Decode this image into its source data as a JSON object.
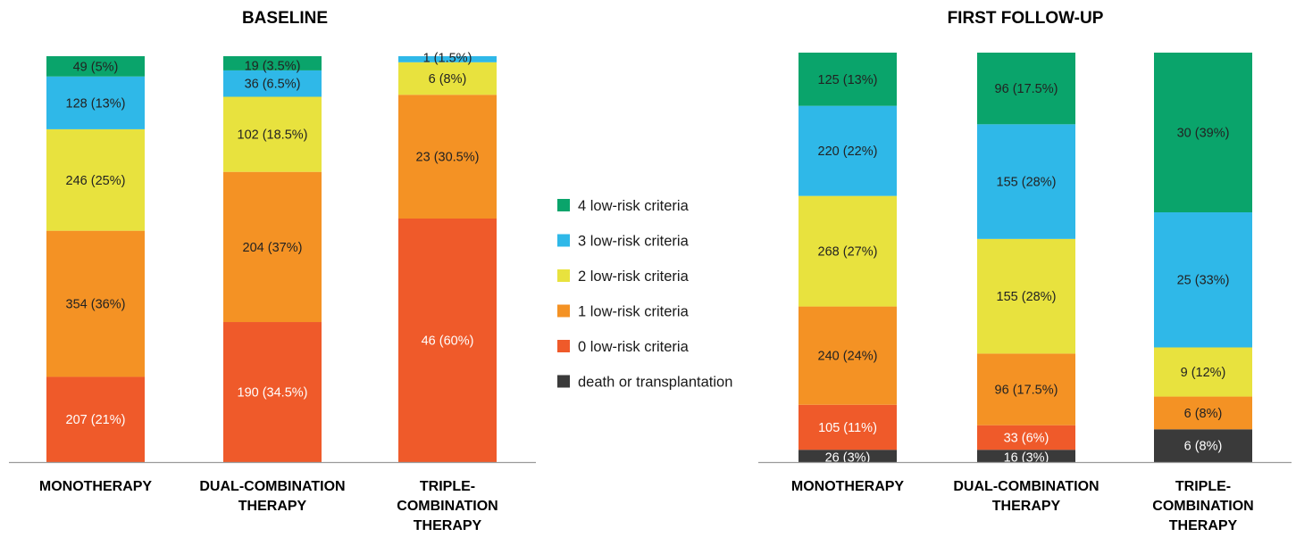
{
  "chart_data": [
    {
      "type": "bar",
      "stacked": true,
      "title": "BASELINE",
      "categories": [
        "MONOTHERAPY",
        "DUAL-COMBINATION THERAPY",
        "TRIPLE-COMBINATION THERAPY"
      ],
      "category_lines": [
        [
          "MONOTHERAPY"
        ],
        [
          "DUAL-COMBINATION",
          "THERAPY"
        ],
        [
          "TRIPLE-",
          "COMBINATION",
          "THERAPY"
        ]
      ],
      "series": [
        {
          "name": "death or transplantation",
          "values": [
            0,
            0,
            0
          ],
          "labels": [
            "",
            "",
            ""
          ]
        },
        {
          "name": "0 low-risk criteria",
          "values": [
            21,
            34.5,
            60
          ],
          "labels": [
            "207 (21%)",
            "190 (34.5%)",
            "46 (60%)"
          ]
        },
        {
          "name": "1 low-risk criteria",
          "values": [
            36,
            37,
            30.5
          ],
          "labels": [
            "354 (36%)",
            "204 (37%)",
            "23 (30.5%)"
          ]
        },
        {
          "name": "2 low-risk criteria",
          "values": [
            25,
            18.5,
            8
          ],
          "labels": [
            "246 (25%)",
            "102 (18.5%)",
            "6 (8%)"
          ]
        },
        {
          "name": "3 low-risk criteria",
          "values": [
            13,
            6.5,
            1.5
          ],
          "labels": [
            "128 (13%)",
            "36 (6.5%)",
            "1 (1.5%)"
          ]
        },
        {
          "name": "4 low-risk criteria",
          "values": [
            5,
            3.5,
            0
          ],
          "labels": [
            "49 (5%)",
            "19 (3.5%)",
            ""
          ]
        }
      ],
      "ylim": [
        0,
        100
      ]
    },
    {
      "type": "bar",
      "stacked": true,
      "title": "FIRST FOLLOW-UP",
      "categories": [
        "MONOTHERAPY",
        "DUAL-COMBINATION THERAPY",
        "TRIPLE-COMBINATION THERAPY"
      ],
      "category_lines": [
        [
          "MONOTHERAPY"
        ],
        [
          "DUAL-COMBINATION",
          "THERAPY"
        ],
        [
          "TRIPLE-",
          "COMBINATION",
          "THERAPY"
        ]
      ],
      "series": [
        {
          "name": "death or transplantation",
          "values": [
            3,
            3,
            8
          ],
          "labels": [
            "26 (3%)",
            "16 (3%)",
            "6 (8%)"
          ]
        },
        {
          "name": "0 low-risk criteria",
          "values": [
            11,
            6,
            0
          ],
          "labels": [
            "105 (11%)",
            "33 (6%)",
            ""
          ]
        },
        {
          "name": "1 low-risk criteria",
          "values": [
            24,
            17.5,
            8
          ],
          "labels": [
            "240 (24%)",
            "96 (17.5%)",
            "6 (8%)"
          ]
        },
        {
          "name": "2 low-risk criteria",
          "values": [
            27,
            28,
            12
          ],
          "labels": [
            "268 (27%)",
            "155 (28%)",
            "9 (12%)"
          ]
        },
        {
          "name": "3 low-risk criteria",
          "values": [
            22,
            28,
            33
          ],
          "labels": [
            "220 (22%)",
            "155 (28%)",
            "25 (33%)"
          ]
        },
        {
          "name": "4 low-risk criteria",
          "values": [
            13,
            17.5,
            39
          ],
          "labels": [
            "125 (13%)",
            "96 (17.5%)",
            "30 (39%)"
          ]
        }
      ],
      "ylim": [
        0,
        100
      ]
    }
  ],
  "legend": [
    {
      "label": "4 low-risk criteria",
      "color": "#0aa46b"
    },
    {
      "label": "3 low-risk criteria",
      "color": "#2fb8e8"
    },
    {
      "label": "2 low-risk criteria",
      "color": "#e8e23e"
    },
    {
      "label": "1 low-risk criteria",
      "color": "#f49224"
    },
    {
      "label": "0 low-risk criteria",
      "color": "#ef5a2a"
    },
    {
      "label": "death or transplantation",
      "color": "#3a3a3a"
    }
  ],
  "series_colors": {
    "death or transplantation": "#3a3a3a",
    "0 low-risk criteria": "#ef5a2a",
    "1 low-risk criteria": "#f49224",
    "2 low-risk criteria": "#e8e23e",
    "3 low-risk criteria": "#2fb8e8",
    "4 low-risk criteria": "#0aa46b"
  },
  "label_colors": {
    "death or transplantation": "#ffffff",
    "0 low-risk criteria": "#ffffff",
    "1 low-risk criteria": "#222222",
    "2 low-risk criteria": "#222222",
    "3 low-risk criteria": "#222222",
    "4 low-risk criteria": "#222222"
  }
}
